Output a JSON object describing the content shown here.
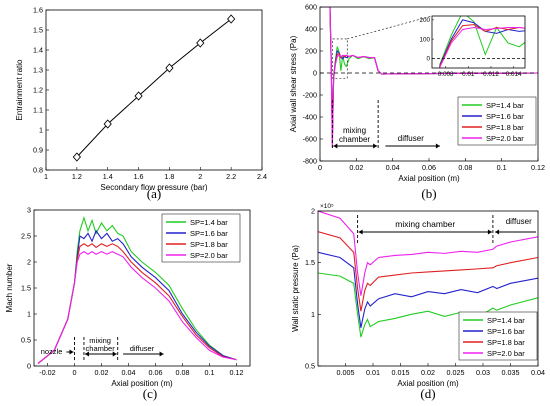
{
  "figure": {
    "series_colors": {
      "SP=1.4 bar": "#22cc22",
      "SP=1.6 bar": "#2222cc",
      "SP=1.8 bar": "#e02020",
      "SP=2.0 bar": "#ee22ee"
    }
  },
  "chart_data": [
    {
      "type": "line",
      "caption": "(a)",
      "xlabel": "Secondary flow pressure (bar)",
      "ylabel": "Entrainment ratio",
      "xlim": [
        1,
        2.4
      ],
      "ylim": [
        0.8,
        1.6
      ],
      "xticks": [
        "1",
        "1.2",
        "1.4",
        "1.6",
        "1.8",
        "2",
        "2.2",
        "2.4"
      ],
      "yticks": [
        "0.8",
        "0.9",
        "1",
        "1.1",
        "1.2",
        "1.3",
        "1.4",
        "1.5",
        "1.6"
      ],
      "marker": "diamond",
      "color": "#000000",
      "x": [
        1.2,
        1.4,
        1.6,
        1.8,
        2.0,
        2.2
      ],
      "y": [
        0.865,
        1.03,
        1.17,
        1.31,
        1.435,
        1.555
      ]
    },
    {
      "type": "line",
      "caption": "(b)",
      "xlabel": "Axial position (m)",
      "ylabel": "Axial wall shear stress (Pa)",
      "xlim": [
        0,
        0.12
      ],
      "ylim": [
        -800,
        600
      ],
      "xticks": [
        "0",
        "0.02",
        "0.04",
        "0.06",
        "0.08",
        "0.1",
        "0.12"
      ],
      "yticks": [
        "-800",
        "-600",
        "-400",
        "-200",
        "0",
        "200",
        "400",
        "600"
      ],
      "annotations": [
        "mixing",
        "chamber",
        "diffuser"
      ],
      "inset": {
        "xticks": [
          "0.008",
          "0.01",
          "0.012",
          "0.014"
        ],
        "yticks": [
          "0",
          "100",
          "200"
        ],
        "xlim": [
          0.0068,
          0.015
        ],
        "ylim": [
          -50,
          220
        ]
      },
      "legend": {
        "position": "bottom-right",
        "entries": [
          "SP=1.4 bar",
          "SP=1.6 bar",
          "SP=1.8 bar",
          "SP=2.0 bar"
        ]
      },
      "series": [
        {
          "name": "SP=1.4 bar",
          "x": [
            0.0,
            0.004,
            0.0055,
            0.0062,
            0.0068,
            0.0075,
            0.0085,
            0.0095,
            0.0105,
            0.0115,
            0.0125,
            0.0135,
            0.0145,
            0.016,
            0.018,
            0.021,
            0.024,
            0.027,
            0.03,
            0.032,
            0.034,
            0.04,
            0.06,
            0.08,
            0.1,
            0.12
          ],
          "y": [
            600,
            600,
            600,
            100,
            -560,
            -30,
            120,
            240,
            190,
            20,
            160,
            80,
            60,
            130,
            160,
            130,
            150,
            130,
            140,
            20,
            -10,
            -8,
            -5,
            -3,
            -2,
            0
          ]
        },
        {
          "name": "SP=1.6 bar",
          "x": [
            0.0,
            0.004,
            0.0055,
            0.0062,
            0.0068,
            0.0075,
            0.0085,
            0.0095,
            0.0105,
            0.0115,
            0.0125,
            0.0135,
            0.0145,
            0.016,
            0.018,
            0.021,
            0.024,
            0.027,
            0.03,
            0.032,
            0.034,
            0.04,
            0.06,
            0.08,
            0.1,
            0.12
          ],
          "y": [
            600,
            600,
            600,
            80,
            -600,
            -35,
            100,
            200,
            185,
            140,
            130,
            150,
            140,
            150,
            160,
            140,
            150,
            140,
            140,
            20,
            -10,
            -8,
            -5,
            -3,
            -2,
            0
          ]
        },
        {
          "name": "SP=1.8 bar",
          "x": [
            0.0,
            0.004,
            0.0055,
            0.0062,
            0.0068,
            0.0075,
            0.0085,
            0.0095,
            0.0105,
            0.0115,
            0.0125,
            0.0135,
            0.0145,
            0.016,
            0.018,
            0.021,
            0.024,
            0.027,
            0.03,
            0.032,
            0.034,
            0.04,
            0.06,
            0.08,
            0.1,
            0.12
          ],
          "y": [
            600,
            600,
            600,
            60,
            -640,
            -40,
            90,
            170,
            175,
            140,
            160,
            150,
            160,
            150,
            160,
            140,
            150,
            140,
            140,
            20,
            -10,
            -8,
            -5,
            -3,
            -2,
            0
          ]
        },
        {
          "name": "SP=2.0 bar",
          "x": [
            0.0,
            0.004,
            0.0055,
            0.0062,
            0.0068,
            0.0075,
            0.0085,
            0.0095,
            0.0105,
            0.0115,
            0.0125,
            0.0135,
            0.0145,
            0.016,
            0.018,
            0.021,
            0.024,
            0.027,
            0.03,
            0.032,
            0.034,
            0.04,
            0.06,
            0.08,
            0.1,
            0.12
          ],
          "y": [
            600,
            600,
            600,
            40,
            -680,
            -45,
            80,
            150,
            160,
            150,
            155,
            160,
            160,
            150,
            160,
            140,
            150,
            140,
            140,
            20,
            -10,
            -8,
            -5,
            -3,
            -2,
            0
          ]
        }
      ]
    },
    {
      "type": "line",
      "caption": "(c)",
      "xlabel": "Axial position (m)",
      "ylabel": "Mach number",
      "xlim": [
        -0.03,
        0.13
      ],
      "ylim": [
        0,
        3
      ],
      "xticks": [
        "-0.02",
        "0",
        "0.02",
        "0.04",
        "0.06",
        "0.08",
        "0.1",
        "0.12"
      ],
      "yticks": [
        "0",
        "0.5",
        "1",
        "1.5",
        "2",
        "2.5",
        "3"
      ],
      "annotations": [
        "nozzle",
        "mixing",
        "chamber",
        "diffuser"
      ],
      "legend": {
        "position": "top-right",
        "entries": [
          "SP=1.4 bar",
          "SP=1.6 bar",
          "SP=1.8 bar",
          "SP=2.0 bar"
        ]
      },
      "series": [
        {
          "name": "SP=1.4 bar",
          "x": [
            -0.027,
            -0.015,
            -0.005,
            0.0,
            0.002,
            0.004,
            0.007,
            0.01,
            0.013,
            0.016,
            0.02,
            0.024,
            0.028,
            0.032,
            0.036,
            0.042,
            0.05,
            0.06,
            0.07,
            0.08,
            0.09,
            0.1,
            0.11,
            0.12
          ],
          "y": [
            0.05,
            0.3,
            0.9,
            1.6,
            2.2,
            2.6,
            2.85,
            2.6,
            2.8,
            2.55,
            2.75,
            2.6,
            2.7,
            2.55,
            2.5,
            2.2,
            2.0,
            1.8,
            1.55,
            1.1,
            0.7,
            0.4,
            0.2,
            0.12
          ]
        },
        {
          "name": "SP=1.6 bar",
          "x": [
            -0.027,
            -0.015,
            -0.005,
            0.0,
            0.002,
            0.004,
            0.007,
            0.01,
            0.013,
            0.016,
            0.02,
            0.024,
            0.028,
            0.032,
            0.036,
            0.042,
            0.05,
            0.06,
            0.07,
            0.08,
            0.09,
            0.1,
            0.11,
            0.12
          ],
          "y": [
            0.05,
            0.3,
            0.9,
            1.6,
            2.1,
            2.5,
            2.45,
            2.55,
            2.4,
            2.6,
            2.45,
            2.55,
            2.4,
            2.45,
            2.35,
            2.1,
            1.9,
            1.7,
            1.45,
            1.0,
            0.65,
            0.38,
            0.2,
            0.12
          ]
        },
        {
          "name": "SP=1.8 bar",
          "x": [
            -0.027,
            -0.015,
            -0.005,
            0.0,
            0.002,
            0.004,
            0.007,
            0.01,
            0.013,
            0.016,
            0.02,
            0.024,
            0.028,
            0.032,
            0.036,
            0.042,
            0.05,
            0.06,
            0.07,
            0.08,
            0.09,
            0.1,
            0.11,
            0.12
          ],
          "y": [
            0.05,
            0.3,
            0.9,
            1.6,
            2.05,
            2.3,
            2.35,
            2.3,
            2.35,
            2.28,
            2.35,
            2.3,
            2.35,
            2.3,
            2.2,
            2.0,
            1.8,
            1.6,
            1.35,
            0.95,
            0.6,
            0.35,
            0.18,
            0.12
          ]
        },
        {
          "name": "SP=2.0 bar",
          "x": [
            -0.027,
            -0.015,
            -0.005,
            0.0,
            0.002,
            0.004,
            0.007,
            0.01,
            0.013,
            0.016,
            0.02,
            0.024,
            0.028,
            0.032,
            0.036,
            0.042,
            0.05,
            0.06,
            0.07,
            0.08,
            0.09,
            0.1,
            0.11,
            0.12
          ],
          "y": [
            0.05,
            0.3,
            0.9,
            1.6,
            2.0,
            2.15,
            2.2,
            2.15,
            2.2,
            2.15,
            2.2,
            2.15,
            2.2,
            2.15,
            2.1,
            1.9,
            1.7,
            1.5,
            1.25,
            0.85,
            0.55,
            0.3,
            0.17,
            0.12
          ]
        }
      ]
    },
    {
      "type": "line",
      "caption": "(d)",
      "xlabel": "Axial position (m)",
      "ylabel": "Wall static pressure (Pa)",
      "exponent_label": "×10⁵",
      "xlim": [
        0,
        0.04
      ],
      "ylim": [
        50000,
        200000
      ],
      "xticks": [
        "0.005",
        "0.01",
        "0.015",
        "0.02",
        "0.025",
        "0.03",
        "0.035",
        "0.04"
      ],
      "yticks": [
        "0.5",
        "1",
        "1.5",
        "2"
      ],
      "annotations": [
        "mixing chamber",
        "diffuser"
      ],
      "legend": {
        "position": "bottom-right",
        "entries": [
          "SP=1.4 bar",
          "SP=1.6 bar",
          "SP=1.8 bar",
          "SP=2.0 bar"
        ]
      },
      "series": [
        {
          "name": "SP=1.4 bar",
          "x": [
            0.0,
            0.004,
            0.0065,
            0.0072,
            0.0078,
            0.0085,
            0.009,
            0.0095,
            0.011,
            0.014,
            0.017,
            0.02,
            0.023,
            0.026,
            0.029,
            0.0318,
            0.0325,
            0.035,
            0.04
          ],
          "y": [
            140000,
            137000,
            130000,
            100000,
            78000,
            90000,
            95000,
            88000,
            93000,
            96000,
            100000,
            103000,
            98000,
            102000,
            97000,
            106000,
            104000,
            109000,
            116000
          ]
        },
        {
          "name": "SP=1.6 bar",
          "x": [
            0.0,
            0.004,
            0.0065,
            0.0072,
            0.0078,
            0.0085,
            0.009,
            0.0095,
            0.011,
            0.014,
            0.017,
            0.02,
            0.023,
            0.026,
            0.029,
            0.0318,
            0.0325,
            0.035,
            0.04
          ],
          "y": [
            160000,
            155000,
            145000,
            110000,
            87000,
            105000,
            112000,
            108000,
            115000,
            120000,
            117000,
            122000,
            120000,
            124000,
            121000,
            127000,
            125000,
            130000,
            135000
          ]
        },
        {
          "name": "SP=1.8 bar",
          "x": [
            0.0,
            0.004,
            0.0065,
            0.0072,
            0.0078,
            0.0085,
            0.009,
            0.0095,
            0.011,
            0.014,
            0.017,
            0.02,
            0.023,
            0.026,
            0.029,
            0.0318,
            0.0325,
            0.035,
            0.04
          ],
          "y": [
            180000,
            174000,
            160000,
            125000,
            103000,
            123000,
            130000,
            128000,
            136000,
            138000,
            140000,
            141000,
            142000,
            143000,
            144000,
            145000,
            147000,
            150000,
            155000
          ]
        },
        {
          "name": "SP=2.0 bar",
          "x": [
            0.0,
            0.004,
            0.0065,
            0.0072,
            0.0078,
            0.0085,
            0.009,
            0.0095,
            0.011,
            0.014,
            0.017,
            0.02,
            0.023,
            0.026,
            0.029,
            0.0318,
            0.0325,
            0.035,
            0.04
          ],
          "y": [
            200000,
            193000,
            178000,
            140000,
            118000,
            140000,
            150000,
            148000,
            155000,
            157000,
            158000,
            160000,
            159000,
            161000,
            160000,
            163000,
            166000,
            170000,
            175000
          ]
        }
      ]
    }
  ]
}
